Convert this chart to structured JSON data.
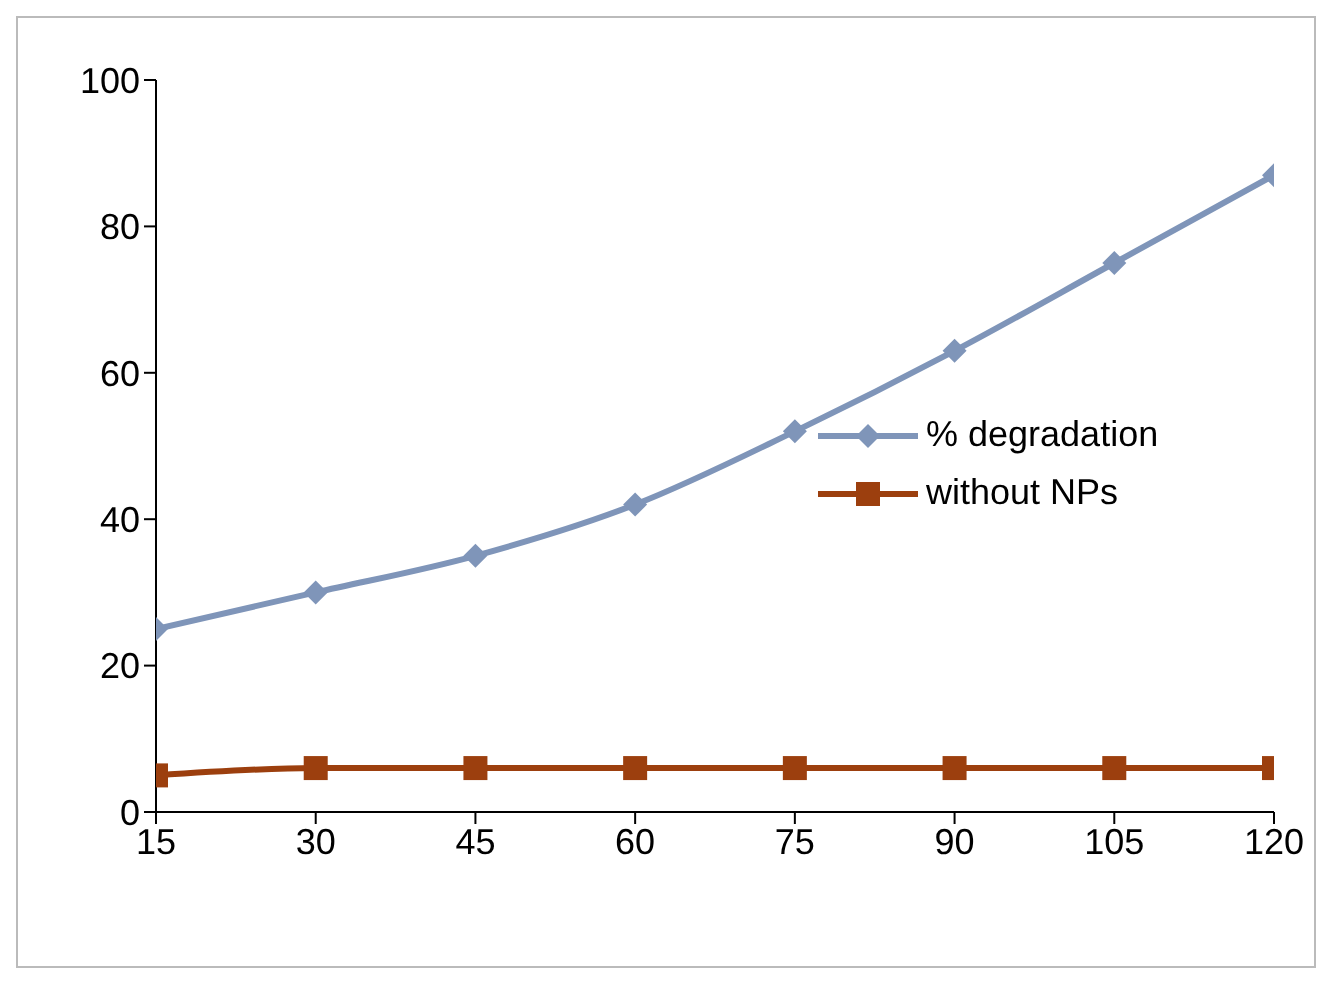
{
  "chart_data": {
    "type": "line",
    "x": [
      15,
      30,
      45,
      60,
      75,
      90,
      105,
      120
    ],
    "xlim": [
      15,
      120
    ],
    "xticks": [
      15,
      30,
      45,
      60,
      75,
      90,
      105,
      120
    ],
    "ylim": [
      0,
      100
    ],
    "yticks": [
      0,
      20,
      40,
      60,
      80,
      100
    ],
    "grid": false,
    "legend": "right",
    "series": [
      {
        "name": "% degradation",
        "color": "#7f95b9",
        "marker": "diamond",
        "values": [
          25,
          30,
          35,
          42,
          52,
          63,
          75,
          87
        ]
      },
      {
        "name": "without NPs",
        "color": "#9c3f0e",
        "marker": "square",
        "values": [
          5,
          6,
          6,
          6,
          6,
          6,
          6,
          6
        ]
      }
    ]
  }
}
